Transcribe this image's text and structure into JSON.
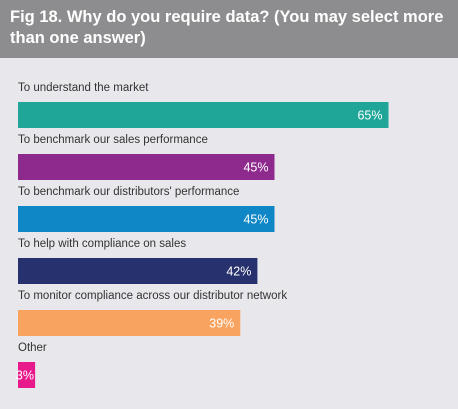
{
  "chart_data": {
    "type": "bar",
    "orientation": "horizontal",
    "title": "Fig 18. Why do you require data? (You may select more than one answer)",
    "categories": [
      "To understand the market",
      "To benchmark our sales performance",
      "To benchmark our distributors' performance",
      "To help with compliance on sales",
      "To monitor compliance across our distributor network",
      "Other"
    ],
    "values": [
      65,
      45,
      45,
      42,
      39,
      3
    ],
    "value_labels": [
      "65%",
      "45%",
      "45%",
      "42%",
      "39%",
      "3%"
    ],
    "colors": [
      "#1fa698",
      "#8e2a8e",
      "#0f86c6",
      "#27316e",
      "#f8a35f",
      "#e8198b"
    ]
  }
}
